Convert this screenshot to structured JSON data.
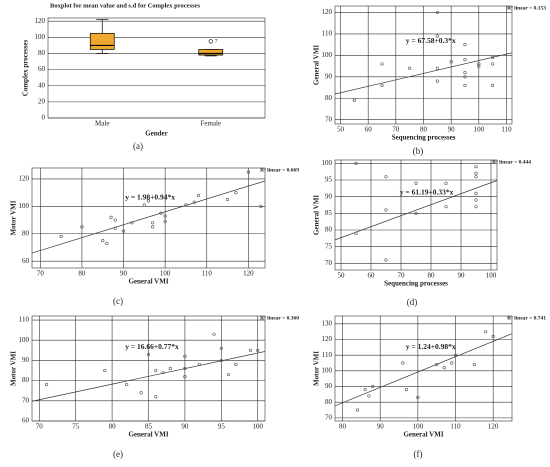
{
  "chart_data": [
    {
      "type": "box",
      "title": "Boxplot for mean value and s.d for Complex processes",
      "panel_label": "(a)",
      "x_label": "Gender",
      "y_label": "Complex processes",
      "categories": [
        "Male",
        "Female"
      ],
      "boxes": [
        {
          "whisker_low": 80,
          "q1": 85,
          "median": 90,
          "q3": 105,
          "whisker_high": 122
        },
        {
          "whisker_low": 77,
          "q1": 78,
          "median": 80,
          "q3": 85,
          "whisker_high": 85
        }
      ],
      "outliers": [
        [],
        [
          95
        ]
      ],
      "outlier_labels": [
        [],
        [
          "7"
        ]
      ],
      "color": "#f0a830",
      "ylim": [
        0,
        124
      ],
      "yticks": [
        0,
        20,
        40,
        60,
        80,
        100,
        120
      ],
      "grid": true
    },
    {
      "type": "scatter",
      "panel_label": "(b)",
      "x_label": "Sequencing processes",
      "y_label": "General VMI",
      "r2_label": "R² linear = 0.153",
      "equation": "y = 67.58+0.3*x",
      "fit": {
        "intercept": 67.58,
        "slope": 0.3
      },
      "x": [
        55,
        65,
        65,
        75,
        85,
        85,
        85,
        85,
        90,
        95,
        95,
        95,
        95,
        95,
        100,
        100,
        105,
        105,
        105
      ],
      "y": [
        79,
        86,
        96,
        94,
        120,
        109,
        94,
        88,
        97,
        105,
        98,
        92,
        90,
        86,
        96,
        95,
        99,
        86,
        96
      ],
      "xlim": [
        48,
        112
      ],
      "xticks": [
        50,
        60,
        70,
        80,
        90,
        100,
        110
      ],
      "ylim": [
        68,
        123
      ],
      "yticks": [
        70,
        80,
        90,
        100,
        110,
        120
      ],
      "grid": true
    },
    {
      "type": "scatter",
      "panel_label": "(c)",
      "x_label": "General VMI",
      "y_label": "Motor VMI",
      "r2_label": "R² linear = 0.669",
      "equation": "y = 1.98+0.94*x",
      "fit": {
        "intercept": 1.98,
        "slope": 0.94
      },
      "x": [
        75,
        80,
        85,
        86,
        87,
        88,
        90,
        88,
        92,
        95,
        96,
        97,
        97,
        99,
        100,
        100,
        105,
        107,
        108,
        115,
        117,
        120,
        123
      ],
      "y": [
        78,
        85,
        75,
        73,
        92,
        90,
        82,
        84,
        88,
        101,
        104,
        88,
        85,
        95,
        93,
        89,
        101,
        103,
        108,
        105,
        110,
        125,
        100
      ],
      "xlim": [
        68,
        124
      ],
      "xticks": [
        70,
        80,
        90,
        100,
        110,
        120
      ],
      "ylim": [
        55,
        128
      ],
      "yticks": [
        60,
        80,
        100,
        120
      ],
      "grid": true
    },
    {
      "type": "scatter",
      "panel_label": "(d)",
      "x_label": "Sequencing processes",
      "y_label": "General VMI",
      "r2_label": "R² linear = 0.444",
      "equation": "y = 61.19+0.33*x",
      "fit": {
        "intercept": 61.19,
        "slope": 0.33
      },
      "x": [
        55,
        55,
        65,
        65,
        65,
        75,
        75,
        85,
        85,
        95,
        95,
        95,
        95,
        95,
        95
      ],
      "y": [
        100,
        79,
        96,
        86,
        71,
        94,
        85,
        94,
        87,
        99,
        97,
        91,
        89,
        87,
        96
      ],
      "xlim": [
        48,
        102
      ],
      "xticks": [
        50,
        60,
        70,
        80,
        90,
        100
      ],
      "ylim": [
        68,
        101
      ],
      "yticks": [
        70,
        75,
        80,
        85,
        90,
        95,
        100
      ],
      "grid": true
    },
    {
      "type": "scatter",
      "panel_label": "(e)",
      "x_label": "General VMI",
      "y_label": "Motor VMI",
      "r2_label": "R² linear = 0.360",
      "equation": "y = 16.66+0.77*x",
      "fit": {
        "intercept": 16.66,
        "slope": 0.77
      },
      "x": [
        71,
        79,
        82,
        84,
        85,
        86,
        87,
        88,
        90,
        90,
        90,
        92,
        94,
        95,
        95,
        96,
        97,
        99,
        100,
        86
      ],
      "y": [
        78,
        85,
        78,
        74,
        93,
        85,
        84,
        86,
        82,
        92,
        86,
        88,
        103,
        96,
        90,
        83,
        88,
        95,
        95,
        72
      ],
      "xlim": [
        69,
        101
      ],
      "xticks": [
        70,
        75,
        80,
        85,
        90,
        95,
        100
      ],
      "ylim": [
        60,
        112
      ],
      "yticks": [
        60,
        70,
        80,
        90,
        100,
        110
      ],
      "grid": true
    },
    {
      "type": "scatter",
      "panel_label": "(f)",
      "x_label": "General VMI",
      "y_label": "Motor VMI",
      "r2_label": "R² linear = 0.741",
      "equation": "y = 1.24+0.98*x",
      "fit": {
        "intercept": 1.24,
        "slope": 0.98
      },
      "x": [
        84,
        86,
        88,
        87,
        96,
        97,
        100,
        105,
        107,
        109,
        110,
        115,
        118,
        120
      ],
      "y": [
        75,
        88,
        90,
        84,
        105,
        88,
        83,
        104,
        102,
        105,
        110,
        104,
        125,
        122
      ],
      "xlim": [
        78,
        125
      ],
      "xticks": [
        80,
        90,
        100,
        110,
        120
      ],
      "ylim": [
        68,
        135
      ],
      "yticks": [
        70,
        80,
        90,
        100,
        110,
        120,
        130
      ],
      "grid": true
    }
  ]
}
